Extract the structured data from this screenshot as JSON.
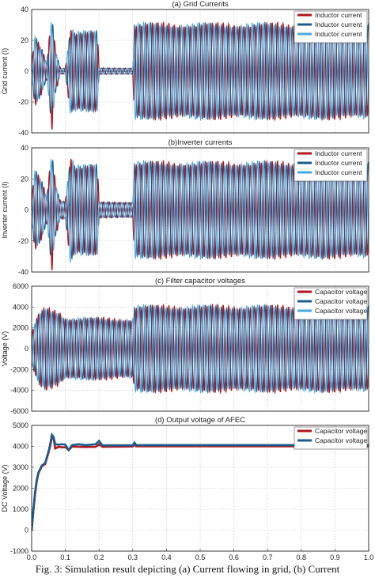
{
  "figure": {
    "caption": "Fig. 3: Simulation result depicting (a) Current flowing in grid, (b) Current"
  },
  "colors": {
    "red": "#b0171f",
    "navy": "#1a5d8c",
    "blue": "#2f86c6",
    "lightblue": "#4aa8e0",
    "grid": "#bdbdbd"
  },
  "chart_data": [
    {
      "id": "a",
      "type": "line",
      "title": "(a)    Grid Currents",
      "xlabel": "",
      "ylabel": "Grid current (I)",
      "xlim": [
        0,
        1
      ],
      "ylim": [
        -40,
        40
      ],
      "xticks": [],
      "yticks": [
        -40,
        -20,
        0,
        20,
        40
      ],
      "grid": true,
      "legend": "top-right",
      "series": [
        {
          "name": "Inductor current",
          "color": "red"
        },
        {
          "name": "Inductor current",
          "color": "navy"
        },
        {
          "name": "Inductor current",
          "color": "lightblue"
        }
      ],
      "envelope": [
        [
          0,
          5
        ],
        [
          0.01,
          22
        ],
        [
          0.03,
          14
        ],
        [
          0.045,
          5
        ],
        [
          0.06,
          37
        ],
        [
          0.07,
          15
        ],
        [
          0.085,
          2
        ],
        [
          0.1,
          2
        ],
        [
          0.115,
          28
        ],
        [
          0.13,
          25
        ],
        [
          0.195,
          25
        ],
        [
          0.2,
          2
        ],
        [
          0.3,
          2
        ],
        [
          0.305,
          30
        ],
        [
          1,
          30
        ]
      ]
    },
    {
      "id": "b",
      "type": "line",
      "title": "(b)Inverter currents",
      "xlabel": "",
      "ylabel": "Inverter current (I)",
      "xlim": [
        0,
        1
      ],
      "ylim": [
        -40,
        40
      ],
      "xticks": [],
      "yticks": [
        -40,
        -20,
        0,
        20,
        40
      ],
      "grid": true,
      "legend": "top-right",
      "series": [
        {
          "name": "Inductor current",
          "color": "red"
        },
        {
          "name": "Inductor current",
          "color": "navy"
        },
        {
          "name": "Inductor current",
          "color": "lightblue"
        }
      ],
      "envelope": [
        [
          0,
          8
        ],
        [
          0.01,
          25
        ],
        [
          0.03,
          18
        ],
        [
          0.045,
          8
        ],
        [
          0.06,
          38
        ],
        [
          0.07,
          18
        ],
        [
          0.085,
          6
        ],
        [
          0.1,
          6
        ],
        [
          0.115,
          35
        ],
        [
          0.13,
          28
        ],
        [
          0.195,
          28
        ],
        [
          0.2,
          5
        ],
        [
          0.3,
          5
        ],
        [
          0.305,
          30
        ],
        [
          1,
          30
        ]
      ]
    },
    {
      "id": "c",
      "type": "line",
      "title": "(c) Filter capacitor voltages",
      "xlabel": "",
      "ylabel": "Voltage (V)",
      "xlim": [
        0,
        1
      ],
      "ylim": [
        -6000,
        6000
      ],
      "xticks": [],
      "yticks": [
        -6000,
        -4000,
        -2000,
        0,
        2000,
        4000,
        6000
      ],
      "grid": true,
      "legend": "top-right",
      "series": [
        {
          "name": "Capacitor voltage",
          "color": "red"
        },
        {
          "name": "Capacitor voltage",
          "color": "navy"
        },
        {
          "name": "Capacitor voltage",
          "color": "lightblue"
        }
      ],
      "envelope": [
        [
          0,
          1500
        ],
        [
          0.02,
          3200
        ],
        [
          0.04,
          3800
        ],
        [
          0.08,
          3500
        ],
        [
          0.1,
          2900
        ],
        [
          0.3,
          2800
        ],
        [
          0.305,
          4000
        ],
        [
          1,
          4000
        ]
      ]
    },
    {
      "id": "d",
      "type": "line",
      "title": "(d)  Output voltage of AFEC",
      "xlabel": "",
      "ylabel": "DC Voltage (V)",
      "xlim": [
        0,
        1
      ],
      "ylim": [
        -1000,
        5000
      ],
      "xticks": [
        0.0,
        0.1,
        0.2,
        0.3,
        0.4,
        0.5,
        0.6,
        0.7,
        0.8,
        0.9,
        1.0
      ],
      "yticks": [
        -1000,
        0,
        1000,
        2000,
        3000,
        4000,
        5000
      ],
      "grid": true,
      "legend": "top-right",
      "series": [
        {
          "name": "Capacitor voltage",
          "color": "red",
          "x": [
            0,
            0.005,
            0.01,
            0.015,
            0.02,
            0.03,
            0.04,
            0.05,
            0.055,
            0.06,
            0.065,
            0.07,
            0.08,
            0.09,
            0.1,
            0.11,
            0.12,
            0.14,
            0.16,
            0.19,
            0.2,
            0.21,
            0.3,
            0.305,
            0.31,
            1.0
          ],
          "y": [
            0,
            900,
            1700,
            2300,
            2700,
            3050,
            3150,
            3700,
            4000,
            4450,
            4400,
            3900,
            3980,
            3950,
            3960,
            3820,
            3990,
            3980,
            3970,
            3980,
            4100,
            3980,
            3990,
            4080,
            4000,
            4000
          ]
        },
        {
          "name": "Capacitor voltage",
          "color": "navy",
          "x": [
            0,
            0.005,
            0.01,
            0.015,
            0.02,
            0.03,
            0.04,
            0.05,
            0.055,
            0.06,
            0.065,
            0.07,
            0.08,
            0.09,
            0.1,
            0.11,
            0.12,
            0.14,
            0.16,
            0.19,
            0.2,
            0.21,
            0.3,
            0.305,
            0.31,
            1.0
          ],
          "y": [
            0,
            950,
            1800,
            2400,
            2750,
            3080,
            3200,
            3750,
            4100,
            4550,
            4450,
            4100,
            4080,
            4100,
            4080,
            3820,
            4060,
            4100,
            4060,
            4100,
            4260,
            4050,
            4050,
            4180,
            4060,
            4060
          ]
        }
      ]
    }
  ]
}
